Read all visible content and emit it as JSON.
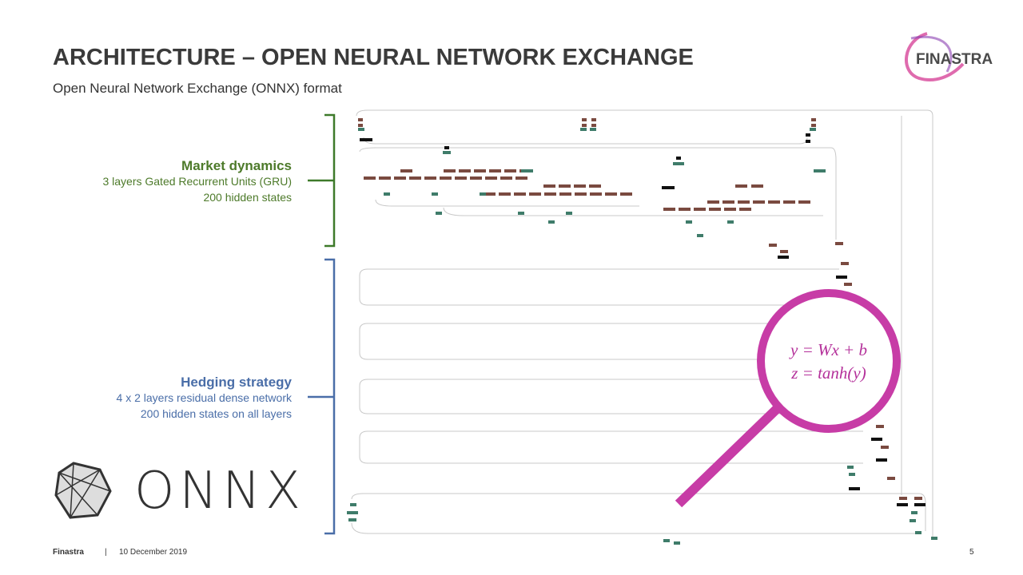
{
  "header": {
    "title": "ARCHITECTURE – OPEN NEURAL NETWORK EXCHANGE",
    "subtitle": "Open Neural Network Exchange (ONNX) format"
  },
  "logo": "FINASTRA",
  "sections": [
    {
      "title": "Market dynamics",
      "lines": [
        "3 layers Gated Recurrent Units (GRU)",
        "200 hidden states"
      ]
    },
    {
      "title": "Hedging strategy",
      "lines": [
        "4 x 2 layers residual dense network",
        "200 hidden states on all layers"
      ]
    }
  ],
  "onnx_logo": "ONNX",
  "equations": [
    "y = Wx + b",
    "z = tanh(y)"
  ],
  "footer": {
    "company": "Finastra",
    "separator": "|",
    "date": "10 December 2019",
    "page": "5"
  }
}
